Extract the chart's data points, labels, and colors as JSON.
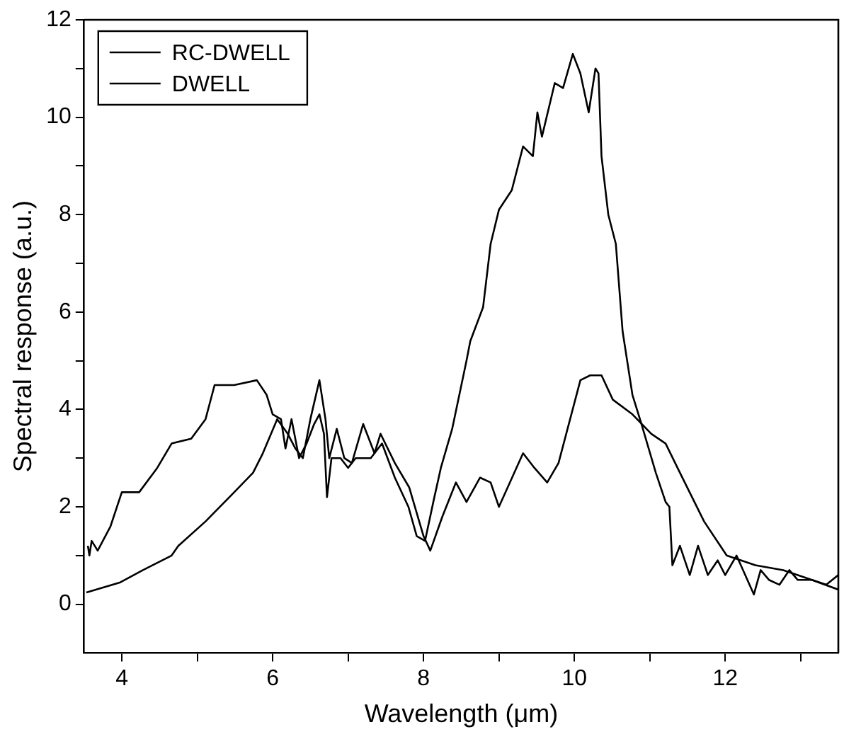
{
  "chart_data": {
    "type": "line",
    "xlabel": "Wavelength (μm)",
    "ylabel": "Spectral response (a.u.)",
    "xlim": [
      3.5,
      13.5
    ],
    "xticks": [
      4,
      {
        "value": 5,
        "label": null
      },
      6,
      {
        "value": 7,
        "label": null
      },
      8,
      {
        "value": 9,
        "label": null
      },
      10,
      {
        "value": 11,
        "label": null
      },
      12,
      {
        "value": 13,
        "label": null
      }
    ],
    "ylim": [
      -1,
      12
    ],
    "yticks": [
      0,
      {
        "value": 1,
        "label": null
      },
      2,
      {
        "value": 3,
        "label": null
      },
      4,
      {
        "value": 5,
        "label": null
      },
      6,
      {
        "value": 7,
        "label": null
      },
      8,
      {
        "value": 9,
        "label": null
      },
      10,
      {
        "value": 11,
        "label": null
      },
      12
    ],
    "grid": false,
    "legend": "top left",
    "marker": "none",
    "line_style": "solid",
    "series": [
      {
        "name": "RC-DWELL",
        "color": "#000000",
        "x": [
          3.55,
          3.57,
          3.6,
          3.68,
          3.85,
          4.0,
          4.23,
          4.47,
          4.66,
          4.92,
          5.11,
          5.23,
          5.49,
          5.79,
          5.92,
          6.0,
          6.11,
          6.17,
          6.25,
          6.35,
          6.45,
          6.55,
          6.62,
          6.68,
          6.72,
          6.78,
          6.9,
          7.0,
          7.1,
          7.3,
          7.45,
          7.62,
          7.8,
          7.91,
          8.02,
          8.13,
          8.23,
          8.38,
          8.57,
          8.62,
          8.79,
          8.89,
          9.0,
          9.17,
          9.32,
          9.45,
          9.51,
          9.57,
          9.74,
          9.85,
          9.98,
          10.08,
          10.19,
          10.28,
          10.32,
          10.36,
          10.45,
          10.55,
          10.64,
          10.77,
          10.89,
          11.08,
          11.21,
          11.26,
          11.3,
          11.4,
          11.53,
          11.64,
          11.77,
          11.9,
          12.0,
          12.15,
          12.38,
          12.47,
          12.58,
          12.72,
          12.85,
          12.96,
          13.15,
          13.34,
          13.5
        ],
        "values": [
          1.2,
          1.0,
          1.3,
          1.1,
          1.6,
          2.3,
          2.3,
          2.8,
          3.3,
          3.4,
          3.8,
          4.5,
          4.5,
          4.6,
          4.3,
          3.9,
          3.8,
          3.2,
          3.8,
          3.0,
          3.3,
          3.7,
          3.9,
          3.5,
          2.2,
          3.0,
          3.0,
          2.8,
          3.0,
          3.0,
          3.3,
          2.6,
          2.0,
          1.4,
          1.3,
          2.1,
          2.8,
          3.6,
          5.0,
          5.4,
          6.1,
          7.4,
          8.1,
          8.5,
          9.4,
          9.2,
          10.1,
          9.6,
          10.7,
          10.6,
          11.3,
          10.9,
          10.1,
          11.0,
          10.9,
          9.2,
          8.0,
          7.4,
          5.6,
          4.3,
          3.7,
          2.7,
          2.1,
          2.0,
          0.8,
          1.2,
          0.6,
          1.2,
          0.6,
          0.9,
          0.6,
          1.0,
          0.2,
          0.7,
          0.5,
          0.4,
          0.7,
          0.5,
          0.5,
          0.4,
          0.6
        ]
      },
      {
        "name": "DWELL",
        "color": "#000000",
        "x": [
          3.53,
          3.98,
          4.28,
          4.66,
          4.75,
          5.11,
          5.49,
          5.74,
          5.87,
          6.06,
          6.2,
          6.3,
          6.4,
          6.5,
          6.62,
          6.7,
          6.75,
          6.85,
          6.95,
          7.05,
          7.2,
          7.35,
          7.43,
          7.62,
          7.81,
          8.0,
          8.09,
          8.25,
          8.43,
          8.57,
          8.75,
          8.89,
          9.0,
          9.32,
          9.47,
          9.64,
          9.79,
          10.08,
          10.21,
          10.36,
          10.51,
          10.77,
          11.02,
          11.21,
          11.4,
          11.72,
          12.02,
          12.4,
          12.77,
          13.15,
          13.5
        ],
        "values": [
          0.24,
          0.45,
          0.7,
          1.0,
          1.2,
          1.7,
          2.3,
          2.7,
          3.1,
          3.8,
          3.5,
          3.2,
          3.0,
          3.8,
          4.6,
          3.8,
          3.0,
          3.6,
          3.0,
          2.9,
          3.7,
          3.1,
          3.5,
          2.9,
          2.4,
          1.4,
          1.1,
          1.8,
          2.5,
          2.1,
          2.6,
          2.5,
          2.0,
          3.1,
          2.8,
          2.5,
          2.9,
          4.6,
          4.7,
          4.7,
          4.2,
          3.9,
          3.5,
          3.3,
          2.7,
          1.7,
          1.0,
          0.8,
          0.7,
          0.5,
          0.3
        ]
      }
    ]
  }
}
